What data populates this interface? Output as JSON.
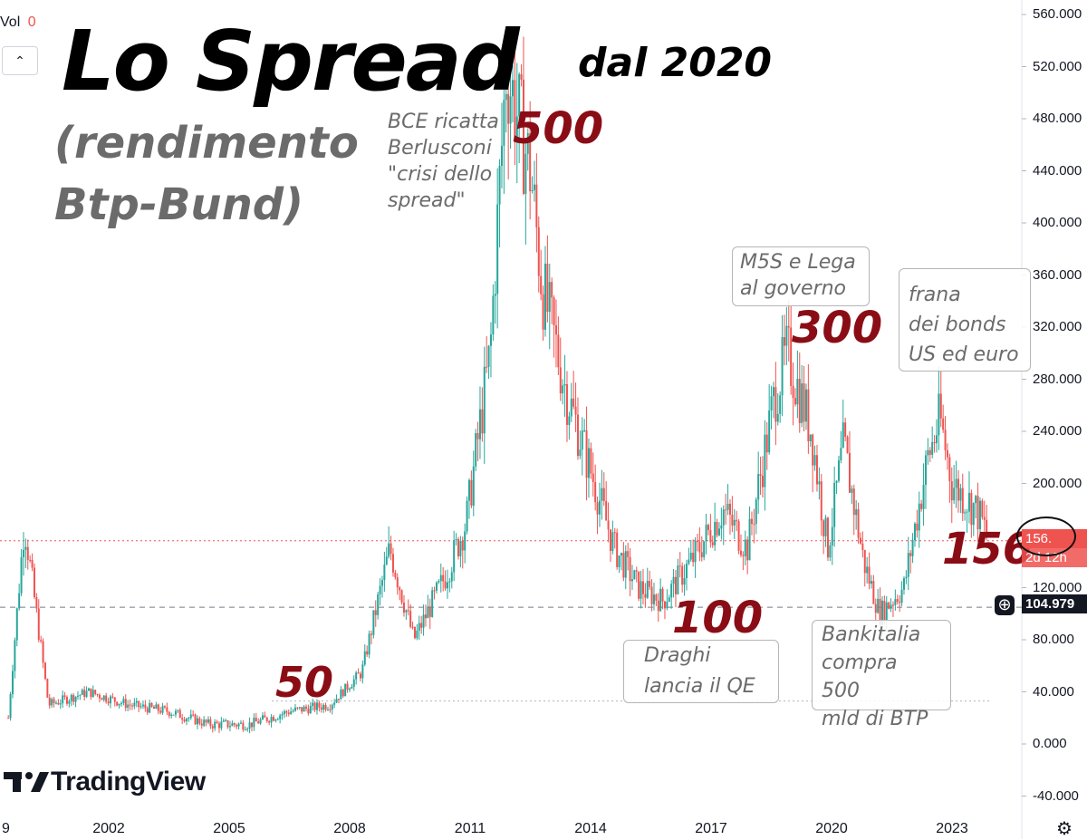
{
  "title": "Lo Spread",
  "title_suffix": "dal 2020",
  "subtitle_line1": "(rendimento",
  "subtitle_line2": "Btp-Bund)",
  "vol_label": "Vol",
  "vol_value": "0",
  "logo_text": "TradingView",
  "annotations": {
    "bce": [
      "BCE ricatta",
      "Berlusconi",
      "\"crisi dello",
      "spread\""
    ],
    "m5s": [
      "M5S e Lega",
      "al governo"
    ],
    "frana": [
      "frana",
      "dei bonds",
      "US ed euro"
    ],
    "draghi": [
      "Draghi",
      "lancia il QE"
    ],
    "bankitalia": [
      "Bankitalia",
      "compra 500",
      "mld di BTP"
    ]
  },
  "big_labels": {
    "l500": "500",
    "l300": "300",
    "l100": "100",
    "l50": "50",
    "l156": "156"
  },
  "price_tags": {
    "last": "156.",
    "countdown": "2d 12h",
    "crosshair": "104.979"
  },
  "colors": {
    "up": "#26a69a",
    "down": "#ef5350",
    "dark_red": "#8a0d16",
    "last_line": "#ef5350"
  },
  "chart_data": {
    "type": "candlestick",
    "x_ticks": [
      "9",
      "2002",
      "2005",
      "2008",
      "2011",
      "2014",
      "2017",
      "2020",
      "2023"
    ],
    "y_ticks": [
      "560.000",
      "520.000",
      "480.000",
      "440.000",
      "400.000",
      "360.000",
      "320.000",
      "280.000",
      "240.000",
      "200.000",
      "160.000",
      "120.000",
      "80.000",
      "40.000",
      "0.000",
      "-40.000"
    ],
    "ylim": [
      -40,
      560
    ],
    "last_value": 156,
    "crosshair_value": 104.979,
    "approx_series": [
      {
        "date": "1999.5",
        "value": 20
      },
      {
        "date": "1999.9",
        "value": 170
      },
      {
        "date": "2000.5",
        "value": 30
      },
      {
        "date": "2001.5",
        "value": 40
      },
      {
        "date": "2002.5",
        "value": 30
      },
      {
        "date": "2003.5",
        "value": 25
      },
      {
        "date": "2004.5",
        "value": 15
      },
      {
        "date": "2005.5",
        "value": 15
      },
      {
        "date": "2006.5",
        "value": 25
      },
      {
        "date": "2007.5",
        "value": 30
      },
      {
        "date": "2008.3",
        "value": 55
      },
      {
        "date": "2009.0",
        "value": 150
      },
      {
        "date": "2009.6",
        "value": 80
      },
      {
        "date": "2010.4",
        "value": 130
      },
      {
        "date": "2010.9",
        "value": 170
      },
      {
        "date": "2011.5",
        "value": 300
      },
      {
        "date": "2011.9",
        "value": 520
      },
      {
        "date": "2012.5",
        "value": 440
      },
      {
        "date": "2012.8",
        "value": 350
      },
      {
        "date": "2013.4",
        "value": 270
      },
      {
        "date": "2013.9",
        "value": 220
      },
      {
        "date": "2014.6",
        "value": 150
      },
      {
        "date": "2015.2",
        "value": 120
      },
      {
        "date": "2015.8",
        "value": 110
      },
      {
        "date": "2016.5",
        "value": 140
      },
      {
        "date": "2017.3",
        "value": 180
      },
      {
        "date": "2017.9",
        "value": 150
      },
      {
        "date": "2018.6",
        "value": 270
      },
      {
        "date": "2018.9",
        "value": 300
      },
      {
        "date": "2019.5",
        "value": 240
      },
      {
        "date": "2019.9",
        "value": 150
      },
      {
        "date": "2020.3",
        "value": 230
      },
      {
        "date": "2020.8",
        "value": 140
      },
      {
        "date": "2021.2",
        "value": 100
      },
      {
        "date": "2021.8",
        "value": 120
      },
      {
        "date": "2022.4",
        "value": 220
      },
      {
        "date": "2022.7",
        "value": 250
      },
      {
        "date": "2023.0",
        "value": 200
      },
      {
        "date": "2023.6",
        "value": 180
      },
      {
        "date": "2023.9",
        "value": 160
      }
    ]
  }
}
